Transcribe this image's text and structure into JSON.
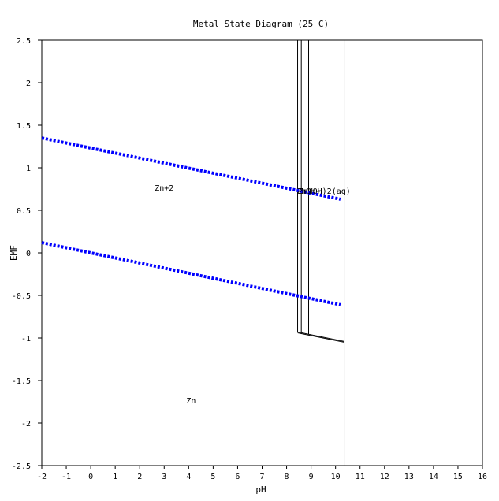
{
  "chart_data": {
    "type": "line",
    "title": "Metal State Diagram (25 C)",
    "xlabel": "pH",
    "ylabel": "EMF",
    "xlim": [
      -2,
      16
    ],
    "ylim": [
      -2.5,
      2.5
    ],
    "xticks": [
      -2,
      -1,
      0,
      1,
      2,
      3,
      4,
      5,
      6,
      7,
      8,
      9,
      10,
      11,
      12,
      13,
      14,
      15,
      16
    ],
    "yticks": [
      2.5,
      2,
      1.5,
      1,
      0.5,
      0,
      -0.5,
      -1,
      -1.5,
      -2,
      -2.5
    ],
    "grid": false,
    "water_lines": [
      {
        "x": [
          -2,
          10.2
        ],
        "y": [
          1.35,
          0.63
        ],
        "style": "dashed",
        "color": "#0000ff"
      },
      {
        "x": [
          -2,
          10.2
        ],
        "y": [
          0.12,
          -0.61
        ],
        "style": "dashed",
        "color": "#0000ff"
      }
    ],
    "boundaries": [
      {
        "x": [
          -2,
          8.45
        ],
        "y": [
          -0.93,
          -0.93
        ]
      },
      {
        "x": [
          8.45,
          10.35
        ],
        "y": [
          -0.93,
          -1.04
        ]
      },
      {
        "x": [
          8.45,
          10.35
        ],
        "y": [
          -0.94,
          -1.05
        ]
      },
      {
        "x": [
          8.45,
          8.45
        ],
        "y": [
          2.5,
          -0.93
        ]
      },
      {
        "x": [
          8.6,
          8.6
        ],
        "y": [
          2.5,
          -0.94
        ]
      },
      {
        "x": [
          8.9,
          8.9
        ],
        "y": [
          2.5,
          -0.96
        ]
      },
      {
        "x": [
          10.35,
          10.35
        ],
        "y": [
          2.5,
          -2.5
        ]
      }
    ],
    "region_labels": [
      {
        "text": "Zn+2",
        "x": 3.0,
        "y": 0.77
      },
      {
        "text": "Zn",
        "x": 4.1,
        "y": -1.73
      },
      {
        "text": "ZnOH+",
        "x": 8.9,
        "y": 0.73
      },
      {
        "text": "Zn(OH)2(aq)",
        "x": 9.55,
        "y": 0.73
      }
    ]
  }
}
